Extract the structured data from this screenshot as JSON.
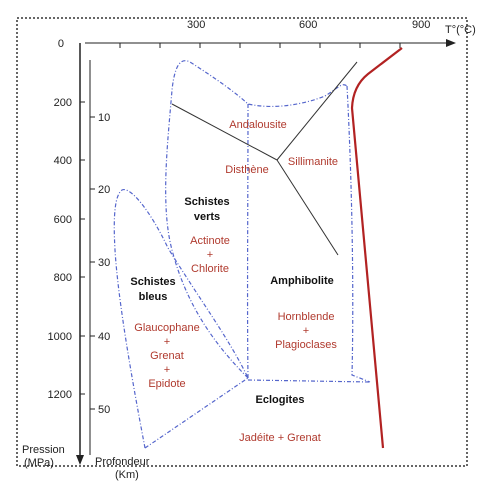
{
  "axes": {
    "temperature_label": "T°(°C)",
    "temperature_ticks": [
      "300",
      "600",
      "900"
    ],
    "pressure_label_line1": "Pression",
    "pressure_label_line2": "(MPa)",
    "pressure_ticks": [
      "0",
      "200",
      "400",
      "600",
      "800",
      "1000",
      "1200"
    ],
    "depth_label_line1": "Profondeur",
    "depth_label_line2": "(Km)",
    "depth_ticks": [
      "10",
      "20",
      "30",
      "40",
      "50"
    ]
  },
  "facies": {
    "schistes_verts": [
      "Schistes",
      "verts"
    ],
    "schistes_bleus": [
      "Schistes",
      "bleus"
    ],
    "amphibolite": "Amphibolite",
    "eclogites": "Eclogites"
  },
  "minerals": {
    "andalousite": "Andalousite",
    "sillimanite": "Sillimanite",
    "disthene": "Disthène",
    "schistes_verts": [
      "Actinote",
      "+",
      "Chlorite"
    ],
    "schistes_bleus": [
      "Glaucophane",
      "+",
      "Grenat",
      "+",
      "Epidote"
    ],
    "amphibolite": [
      "Hornblende",
      "+",
      "Plagioclases"
    ],
    "eclogites": "Jadéite + Grenat"
  },
  "colors": {
    "facies_boundary": "#5566cc",
    "alumino_silicate_lines": "#333333",
    "melting_curve": "#b22222",
    "mineral_text": "#b03a2e"
  }
}
